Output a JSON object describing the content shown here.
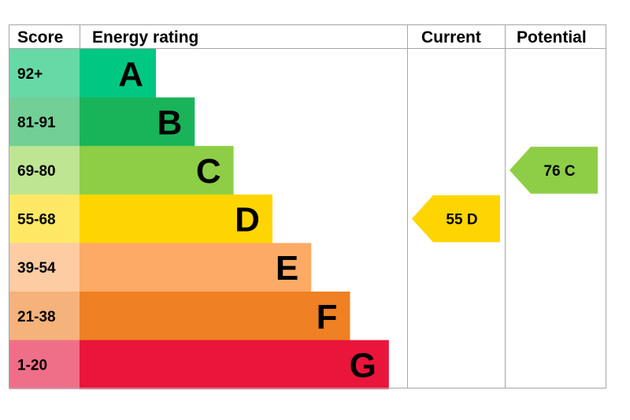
{
  "chart_data": {
    "type": "table",
    "headers": {
      "score": "Score",
      "rating": "Energy rating",
      "current": "Current",
      "potential": "Potential"
    },
    "bands": [
      {
        "score": "92+",
        "letter": "A",
        "color": "#00c781",
        "score_bg": "#66d9a6"
      },
      {
        "score": "81-91",
        "letter": "B",
        "color": "#19b459",
        "score_bg": "#72cf96"
      },
      {
        "score": "69-80",
        "letter": "C",
        "color": "#8dce46",
        "score_bg": "#bde592"
      },
      {
        "score": "55-68",
        "letter": "D",
        "color": "#ffd500",
        "score_bg": "#ffe866"
      },
      {
        "score": "39-54",
        "letter": "E",
        "color": "#fcaa65",
        "score_bg": "#fdcca3"
      },
      {
        "score": "21-38",
        "letter": "F",
        "color": "#ef8023",
        "score_bg": "#f5b27b"
      },
      {
        "score": "1-20",
        "letter": "G",
        "color": "#e9153b",
        "score_bg": "#f06f88"
      }
    ],
    "current": {
      "value": 55,
      "letter": "D",
      "label": "55  D",
      "color": "#ffd500"
    },
    "potential": {
      "value": 76,
      "letter": "C",
      "label": "76  C",
      "color": "#8dce46"
    }
  }
}
